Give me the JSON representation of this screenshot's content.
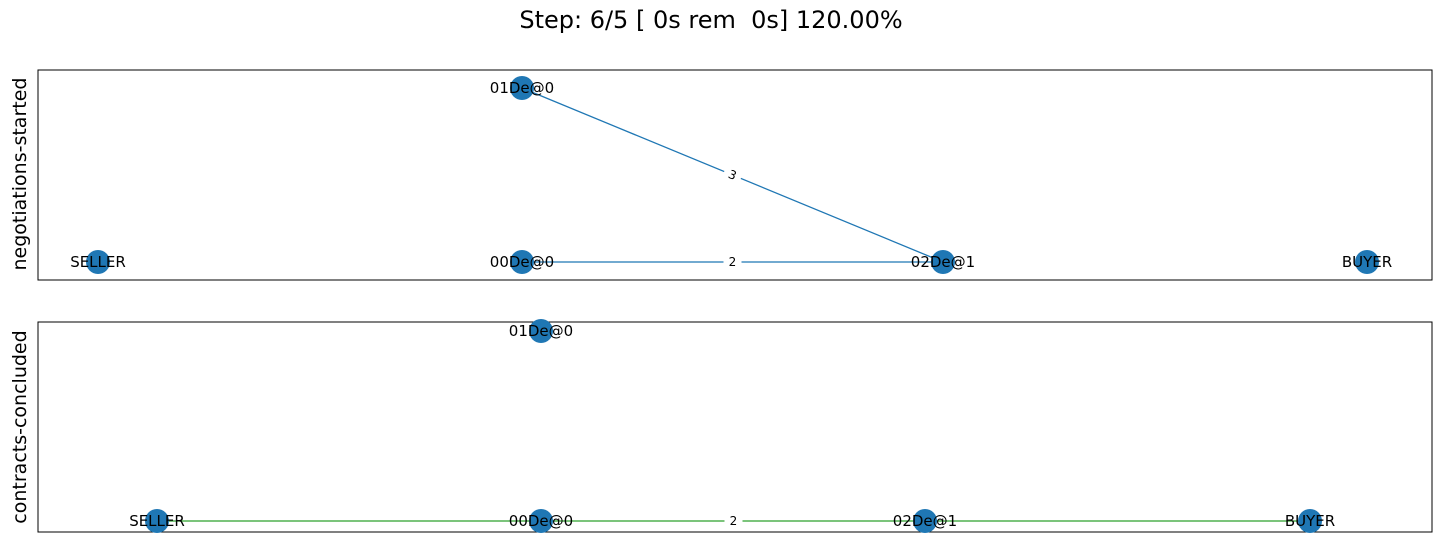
{
  "title": "Step: 6/5 [ 0s rem  0s] 120.00%",
  "colors": {
    "node": "#1f77b4",
    "edge_negotiations": "#1f77b4",
    "edge_contracts": "#2ca02c",
    "axes_border": "#000000"
  },
  "panels": [
    {
      "ylabel": "negotiations-started",
      "nodes": [
        {
          "id": "01De@0",
          "label": "01De@0"
        },
        {
          "id": "SELLER",
          "label": "SELLER"
        },
        {
          "id": "00De@0",
          "label": "00De@0"
        },
        {
          "id": "02De@1",
          "label": "02De@1"
        },
        {
          "id": "BUYER",
          "label": "BUYER"
        }
      ],
      "edges": [
        {
          "from": "01De@0",
          "to": "02De@1",
          "label": "3"
        },
        {
          "from": "00De@0",
          "to": "02De@1",
          "label": "2"
        }
      ]
    },
    {
      "ylabel": "contracts-concluded",
      "nodes": [
        {
          "id": "01De@0",
          "label": "01De@0"
        },
        {
          "id": "SELLER",
          "label": "SELLER"
        },
        {
          "id": "00De@0",
          "label": "00De@0"
        },
        {
          "id": "02De@1",
          "label": "02De@1"
        },
        {
          "id": "BUYER",
          "label": "BUYER"
        }
      ],
      "edges": [
        {
          "from": "SELLER",
          "to": "BUYER",
          "label": "2"
        }
      ]
    }
  ]
}
